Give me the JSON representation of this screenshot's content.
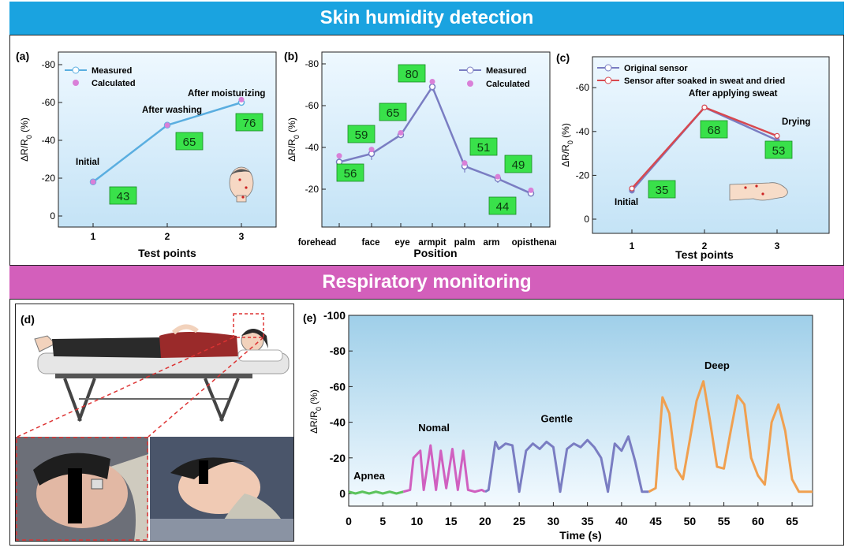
{
  "sections": {
    "skin_title": "Skin humidity detection",
    "resp_title": "Respiratory monitoring"
  },
  "ylabel": "ΔR/R",
  "ylabel_sub": "0",
  "ylabel_unit": " (%)",
  "chart_data": [
    {
      "id": "a",
      "type": "line",
      "panel_label": "(a)",
      "xlabel": "Test points",
      "x": [
        1,
        2,
        3
      ],
      "xticks": [
        "1",
        "2",
        "3"
      ],
      "yticks": [
        "-80",
        "-60",
        "-40",
        "-20",
        "0"
      ],
      "ylim": [
        0,
        -80
      ],
      "legend_position": "top-left",
      "series": [
        {
          "name": "Measured",
          "values": [
            -18,
            -48,
            -60
          ],
          "color": "#5aaee0"
        },
        {
          "name": "Calculated",
          "values": [
            -18,
            -48,
            -61.5
          ],
          "color": "#d980d8"
        }
      ],
      "annotations": [
        {
          "text": "Initial",
          "x": 1
        },
        {
          "text": "After washing",
          "x": 2
        },
        {
          "text": "After moisturizing",
          "x": 3
        }
      ],
      "displays": [
        "43",
        "65",
        "76"
      ]
    },
    {
      "id": "b",
      "type": "line",
      "panel_label": "(b)",
      "xlabel": "Position",
      "categories": [
        "forehead",
        "face",
        "eye",
        "armpit",
        "palm",
        "arm",
        "opisthenar"
      ],
      "yticks": [
        "-80",
        "-60",
        "-40",
        "-20"
      ],
      "ylim": [
        -10,
        -80
      ],
      "legend_position": "top-right",
      "series": [
        {
          "name": "Measured",
          "values": [
            -33,
            -37,
            -46,
            -69,
            -31,
            -25,
            -18
          ],
          "errors": [
            2,
            3,
            1,
            2,
            3,
            2,
            1
          ],
          "color": "#7a7dc2"
        },
        {
          "name": "Calculated",
          "values": [
            -36,
            -39,
            -47,
            -71.5,
            -32.5,
            -26,
            -19.5
          ],
          "color": "#d980d8"
        }
      ],
      "displays": [
        "56",
        "59",
        "65",
        "80",
        "51",
        "49",
        "44"
      ]
    },
    {
      "id": "c",
      "type": "line",
      "panel_label": "(c)",
      "xlabel": "Test points",
      "x": [
        1,
        2,
        3
      ],
      "xticks": [
        "1",
        "2",
        "3"
      ],
      "yticks": [
        "-60",
        "-40",
        "-20",
        "0"
      ],
      "ylim": [
        -70,
        5
      ],
      "legend_position": "top-left",
      "series": [
        {
          "name": "Original sensor",
          "values": [
            -13,
            -51,
            -36
          ],
          "color": "#7a7dc2"
        },
        {
          "name": "Sensor after soaked in sweat and dried",
          "values": [
            -14,
            -51,
            -38
          ],
          "color": "#d8484f"
        }
      ],
      "annotations": [
        {
          "text": "Initial",
          "x": 1
        },
        {
          "text": "After applying sweat",
          "x": 2
        },
        {
          "text": "Drying",
          "x": 3
        }
      ],
      "displays": [
        "35",
        "68",
        "53"
      ]
    },
    {
      "id": "e",
      "type": "line",
      "panel_label": "(e)",
      "xlabel": "Time (s)",
      "xlim": [
        0,
        68
      ],
      "xticks": [
        "0",
        "5",
        "10",
        "15",
        "20",
        "25",
        "30",
        "35",
        "40",
        "45",
        "50",
        "55",
        "60",
        "65"
      ],
      "yticks": [
        "-100",
        "-80",
        "-60",
        "-40",
        "-20",
        "0"
      ],
      "ylim": [
        -100,
        5
      ],
      "series": [
        {
          "name": "Apnea",
          "color": "#5cc35c",
          "x": [
            0,
            1,
            2,
            3,
            4,
            5,
            6,
            7,
            8
          ],
          "values": [
            -1,
            0,
            -1,
            0,
            -1,
            0,
            -1,
            0,
            -1
          ]
        },
        {
          "name": "Nomal",
          "color": "#d060c0",
          "x": [
            8,
            9,
            9.5,
            10.5,
            11,
            12,
            12.8,
            13.5,
            14.3,
            15.2,
            16,
            16.8,
            17.5,
            18.5,
            19.5,
            20
          ],
          "values": [
            -1,
            -2,
            -20,
            -24,
            -2,
            -27,
            -2,
            -24,
            -3,
            -25,
            -2,
            -24,
            -2,
            -1,
            -2,
            -1
          ]
        },
        {
          "name": "Gentle",
          "color": "#7a7dc2",
          "x": [
            20,
            20.5,
            21.5,
            22,
            23,
            24,
            25,
            26,
            27,
            28,
            29,
            30,
            31,
            32,
            33,
            34,
            35,
            36,
            37,
            38,
            39,
            40,
            41,
            42,
            43,
            44
          ],
          "values": [
            -1,
            -2,
            -29,
            -25,
            -28,
            -27,
            -1,
            -24,
            -28,
            -25,
            -29,
            -26,
            -1,
            -25,
            -28,
            -26,
            -30,
            -26,
            -20,
            -1,
            -28,
            -24,
            -32,
            -18,
            -1,
            -1
          ]
        },
        {
          "name": "Deep",
          "color": "#f0a050",
          "x": [
            44,
            45,
            46,
            47,
            48,
            49,
            50,
            51,
            52,
            53,
            54,
            55,
            56,
            57,
            58,
            59,
            60,
            61,
            62,
            63,
            64,
            65,
            66,
            67,
            68
          ],
          "values": [
            -1,
            -3,
            -54,
            -45,
            -14,
            -8,
            -30,
            -52,
            -63,
            -40,
            -15,
            -14,
            -35,
            -55,
            -50,
            -20,
            -10,
            -5,
            -40,
            -50,
            -35,
            -8,
            -1,
            -1,
            -1
          ]
        }
      ],
      "annotations": [
        {
          "text": "Apnea",
          "x": 3,
          "y": -8
        },
        {
          "text": "Nomal",
          "x": 12.5,
          "y": -35
        },
        {
          "text": "Gentle",
          "x": 30.5,
          "y": -40
        },
        {
          "text": "Deep",
          "x": 54,
          "y": -70
        }
      ]
    }
  ],
  "panel_d": {
    "label": "(d)"
  }
}
